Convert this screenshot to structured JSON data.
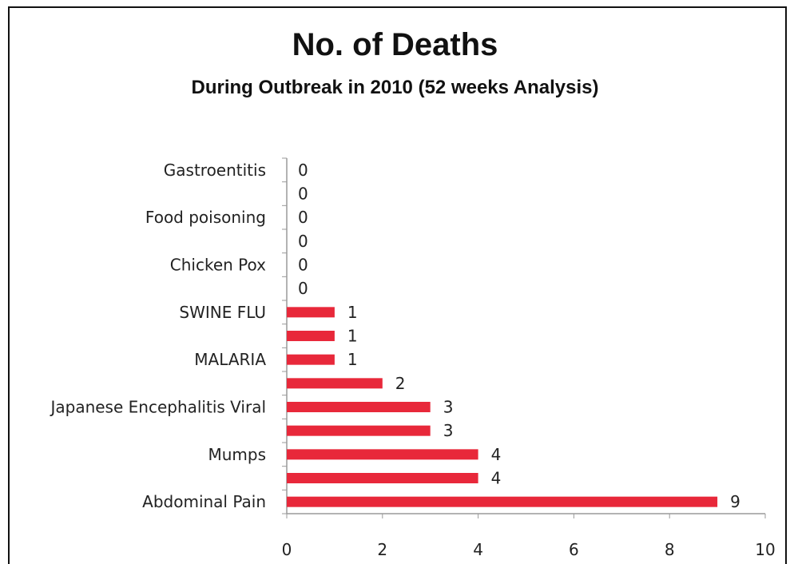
{
  "chart_data": {
    "type": "bar",
    "orientation": "horizontal",
    "title": "No. of Deaths",
    "subtitle": "During Outbreak in 2010 (52 weeks Analysis)",
    "categories": [
      "Abdominal Pain",
      "",
      "Mumps",
      "",
      "Japanese Encephalitis Viral",
      "",
      "MALARIA",
      "",
      "SWINE FLU",
      "",
      "Chicken Pox",
      "",
      "Food poisoning",
      "",
      "Gastroentitis"
    ],
    "values": [
      9,
      4,
      4,
      3,
      3,
      2,
      1,
      1,
      1,
      0,
      0,
      0,
      0,
      0,
      0
    ],
    "xlim": [
      0,
      10
    ],
    "xticks": [
      "0",
      "2",
      "4",
      "6",
      "8",
      "10"
    ],
    "bar_color": "#e8283a",
    "grid": false,
    "legend": "none"
  }
}
